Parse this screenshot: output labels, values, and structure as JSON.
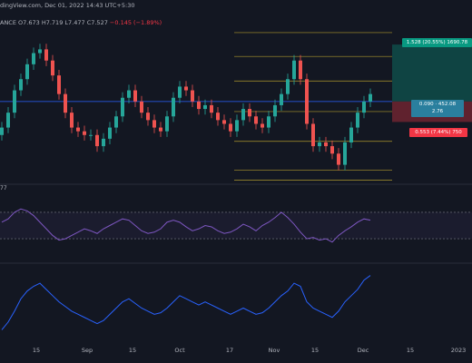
{
  "header": {
    "line1": "dingView.com, Dec 01, 2022 14:43 UTC+5:30",
    "line2_prefix": "ANCE",
    "ohlc": "O7.673  H7.719  L7.477  C7.527",
    "change": "−0.145 (−1.89%)"
  },
  "indicator_label": "77",
  "position_tool": {
    "target_text": "1.528 (20.55%) 1690.78",
    "entry_line1": "0.090 · 452.08",
    "entry_line2": "2.76",
    "stop_text": "0.553 (7.44%) 750",
    "colors": {
      "target": "#089981",
      "entry": "#2a7f9e",
      "stop": "#f23645"
    }
  },
  "x_axis": {
    "ticks": [
      "15",
      "Sep",
      "15",
      "Oct",
      "17",
      "Nov",
      "15",
      "Dec",
      "15",
      "2023"
    ]
  },
  "colors": {
    "background": "#131722",
    "up": "#26a69a",
    "down": "#ef5350",
    "level_lines": "#d4b830",
    "blue_line": "#2962ff",
    "rsi_line": "#7e57c2",
    "obv_line": "#2962ff"
  },
  "chart_data": [
    {
      "type": "candlestick",
      "title": "",
      "x": [
        "Aug 06",
        "Aug 08",
        "Aug 10",
        "Aug 12",
        "Aug 14",
        "Aug 16",
        "Aug 18",
        "Aug 20",
        "Aug 22",
        "Aug 24",
        "Aug 26",
        "Aug 28",
        "Aug 30",
        "Sep 01",
        "Sep 03",
        "Sep 05",
        "Sep 07",
        "Sep 09",
        "Sep 11",
        "Sep 13",
        "Sep 15",
        "Sep 17",
        "Sep 19",
        "Sep 21",
        "Sep 23",
        "Sep 25",
        "Sep 27",
        "Sep 29",
        "Oct 01",
        "Oct 03",
        "Oct 05",
        "Oct 07",
        "Oct 09",
        "Oct 11",
        "Oct 13",
        "Oct 15",
        "Oct 17",
        "Oct 19",
        "Oct 21",
        "Oct 23",
        "Oct 25",
        "Oct 27",
        "Oct 29",
        "Oct 31",
        "Nov 02",
        "Nov 04",
        "Nov 06",
        "Nov 08",
        "Nov 10",
        "Nov 12",
        "Nov 14",
        "Nov 16",
        "Nov 18",
        "Nov 20",
        "Nov 22",
        "Nov 24",
        "Nov 26",
        "Nov 28",
        "Nov 30"
      ],
      "close": [
        6.3,
        6.7,
        7.3,
        7.6,
        8.0,
        8.3,
        8.4,
        8.1,
        7.7,
        7.2,
        6.7,
        6.3,
        6.2,
        6.1,
        6.1,
        5.8,
        6.0,
        6.3,
        6.6,
        7.1,
        7.3,
        7.0,
        6.7,
        6.5,
        6.3,
        6.2,
        6.6,
        7.1,
        7.4,
        7.3,
        7.0,
        6.8,
        6.9,
        6.7,
        6.5,
        6.4,
        6.2,
        6.5,
        6.8,
        6.6,
        6.4,
        6.3,
        6.6,
        6.9,
        7.2,
        7.6,
        8.1,
        7.6,
        6.4,
        5.8,
        5.9,
        5.8,
        5.6,
        5.3,
        5.9,
        6.3,
        6.7,
        7.0,
        7.2
      ],
      "ylim": [
        4.9,
        8.8
      ],
      "levels": [
        8.85,
        8.21,
        7.55,
        6.73,
        5.93,
        5.16,
        4.89
      ],
      "blue_level": 7.0,
      "position": {
        "entry": 7.0,
        "target": 8.53,
        "stop": 6.45
      }
    },
    {
      "type": "line",
      "title": "",
      "y": [
        55,
        60,
        70,
        75,
        72,
        65,
        55,
        45,
        35,
        28,
        30,
        35,
        40,
        45,
        42,
        38,
        45,
        50,
        55,
        60,
        58,
        50,
        42,
        38,
        40,
        45,
        55,
        58,
        55,
        48,
        42,
        45,
        50,
        48,
        42,
        38,
        40,
        45,
        52,
        48,
        42,
        50,
        55,
        62,
        70,
        62,
        52,
        40,
        30,
        32,
        28,
        30,
        25,
        35,
        42,
        48,
        55,
        60,
        58
      ],
      "ylim": [
        0,
        100
      ]
    },
    {
      "type": "line",
      "title": "",
      "y": [
        -20,
        -15,
        -8,
        0,
        5,
        8,
        10,
        6,
        2,
        -2,
        -5,
        -8,
        -10,
        -12,
        -14,
        -16,
        -14,
        -10,
        -6,
        -2,
        0,
        -3,
        -6,
        -8,
        -10,
        -9,
        -6,
        -2,
        2,
        0,
        -2,
        -4,
        -2,
        -4,
        -6,
        -8,
        -10,
        -8,
        -6,
        -8,
        -10,
        -9,
        -6,
        -2,
        2,
        5,
        10,
        8,
        -2,
        -6,
        -8,
        -10,
        -12,
        -8,
        -2,
        2,
        6,
        12,
        15
      ],
      "ylim": [
        -25,
        20
      ]
    }
  ]
}
